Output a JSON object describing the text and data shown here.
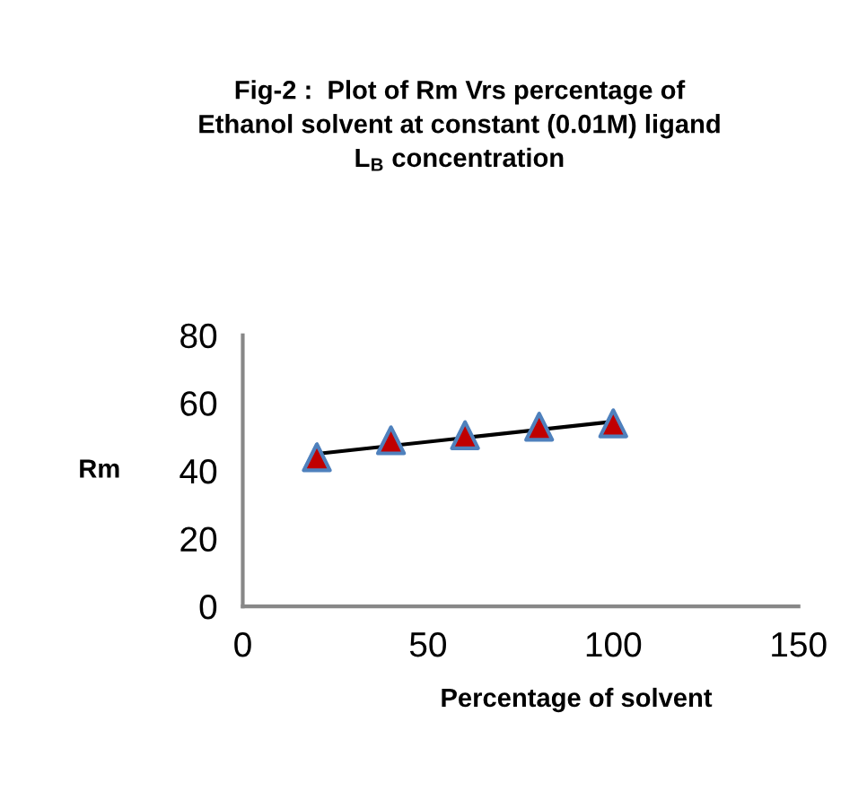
{
  "chart_data": {
    "type": "scatter",
    "title": "Fig-2 :  Plot of Rm Vrs percentage of\nEthanol solvent at constant (0.01M) ligand\nL$_{B}$ concentration",
    "xlabel": "Percentage of solvent",
    "ylabel": "Rm",
    "x": [
      20,
      40,
      60,
      80,
      100
    ],
    "series": [
      {
        "color": "#c00000",
        "values": [
          44,
          49,
          50.5,
          53,
          54
        ],
        "marker": "triangle"
      },
      {
        "type": "line",
        "color": "#000000",
        "x": [
          20,
          100
        ],
        "values": [
          45,
          54.5
        ],
        "marker": "none",
        "line_style": "solid"
      }
    ],
    "xlim": [
      0,
      150
    ],
    "xticks": [
      0,
      50,
      100,
      150
    ],
    "ylim": [
      0,
      80
    ],
    "yticks": [
      0,
      20,
      40,
      60,
      80
    ],
    "grid": false,
    "legend": false
  }
}
